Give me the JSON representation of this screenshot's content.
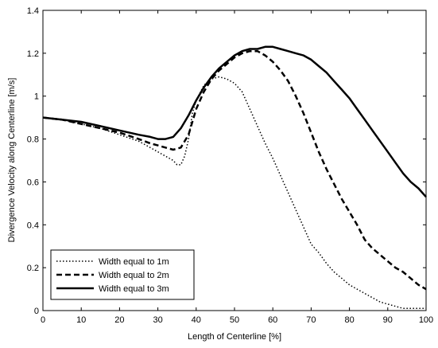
{
  "chart_data": {
    "type": "line",
    "title": "",
    "xlabel": "Length of Centerline [%]",
    "ylabel": "Divergence Velocity along Centerline [m/s]",
    "xlim": [
      0,
      100
    ],
    "ylim": [
      0,
      1.4
    ],
    "xticks": [
      "0",
      "10",
      "20",
      "30",
      "40",
      "50",
      "60",
      "70",
      "80",
      "90",
      "100"
    ],
    "yticks": [
      "0",
      "0.2",
      "0.4",
      "0.6",
      "0.8",
      "1",
      "1.2",
      "1.4"
    ],
    "grid": false,
    "legend_position": "bottom-left",
    "series": [
      {
        "name": "Width equal to 1m",
        "style": "dotted",
        "x": [
          0,
          5,
          10,
          15,
          20,
          25,
          28,
          30,
          32,
          34,
          35,
          36,
          37,
          38,
          39,
          40,
          42,
          44,
          46,
          48,
          50,
          52,
          54,
          56,
          58,
          60,
          62,
          64,
          66,
          68,
          70,
          72,
          74,
          76,
          78,
          80,
          82,
          84,
          86,
          88,
          90,
          92,
          94,
          96,
          98,
          100
        ],
        "y": [
          0.9,
          0.89,
          0.87,
          0.85,
          0.82,
          0.79,
          0.76,
          0.74,
          0.72,
          0.7,
          0.68,
          0.68,
          0.72,
          0.8,
          0.92,
          0.98,
          1.05,
          1.08,
          1.09,
          1.08,
          1.06,
          1.02,
          0.94,
          0.86,
          0.78,
          0.71,
          0.63,
          0.55,
          0.47,
          0.39,
          0.31,
          0.27,
          0.22,
          0.18,
          0.15,
          0.12,
          0.1,
          0.08,
          0.06,
          0.04,
          0.03,
          0.02,
          0.01,
          0.01,
          0.01,
          0.01
        ]
      },
      {
        "name": "Width equal to 2m",
        "style": "dashed",
        "x": [
          0,
          5,
          10,
          15,
          20,
          25,
          28,
          30,
          32,
          34,
          36,
          38,
          40,
          42,
          44,
          46,
          48,
          50,
          52,
          54,
          56,
          58,
          60,
          62,
          64,
          66,
          68,
          70,
          72,
          74,
          76,
          78,
          80,
          82,
          84,
          86,
          88,
          90,
          92,
          94,
          96,
          98,
          100
        ],
        "y": [
          0.9,
          0.89,
          0.87,
          0.85,
          0.83,
          0.8,
          0.78,
          0.77,
          0.76,
          0.75,
          0.76,
          0.82,
          0.94,
          1.02,
          1.08,
          1.12,
          1.15,
          1.18,
          1.2,
          1.21,
          1.21,
          1.19,
          1.16,
          1.12,
          1.07,
          1.0,
          0.92,
          0.83,
          0.74,
          0.66,
          0.59,
          0.52,
          0.46,
          0.4,
          0.33,
          0.29,
          0.26,
          0.23,
          0.2,
          0.18,
          0.15,
          0.12,
          0.1
        ]
      },
      {
        "name": "Width equal to 3m",
        "style": "solid",
        "x": [
          0,
          5,
          10,
          15,
          20,
          25,
          28,
          30,
          32,
          34,
          36,
          38,
          40,
          42,
          44,
          46,
          48,
          50,
          52,
          54,
          56,
          58,
          60,
          62,
          64,
          66,
          68,
          70,
          72,
          74,
          76,
          78,
          80,
          82,
          84,
          86,
          88,
          90,
          92,
          94,
          96,
          98,
          100
        ],
        "y": [
          0.9,
          0.89,
          0.88,
          0.86,
          0.84,
          0.82,
          0.81,
          0.8,
          0.8,
          0.81,
          0.85,
          0.91,
          0.98,
          1.04,
          1.09,
          1.13,
          1.16,
          1.19,
          1.21,
          1.22,
          1.22,
          1.23,
          1.23,
          1.22,
          1.21,
          1.2,
          1.19,
          1.17,
          1.14,
          1.11,
          1.07,
          1.03,
          0.99,
          0.94,
          0.89,
          0.84,
          0.79,
          0.74,
          0.69,
          0.64,
          0.6,
          0.57,
          0.53
        ]
      }
    ]
  }
}
